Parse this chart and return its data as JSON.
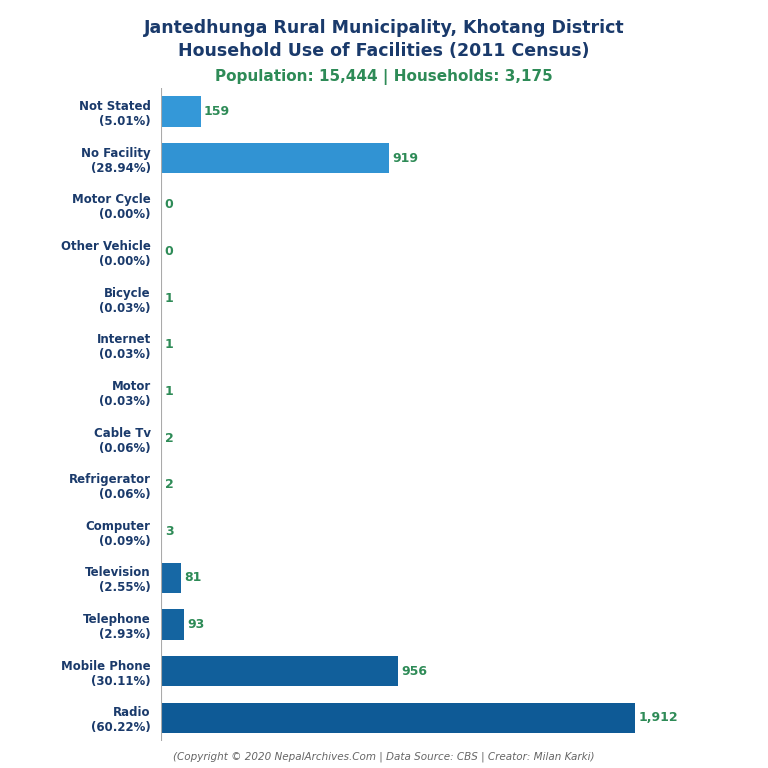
{
  "title_line1": "Jantedhunga Rural Municipality, Khotang District",
  "title_line2": "Household Use of Facilities (2011 Census)",
  "subtitle": "Population: 15,444 | Households: 3,175",
  "footer": "(Copyright © 2020 NepalArchives.Com | Data Source: CBS | Creator: Milan Karki)",
  "categories": [
    "Not Stated\n(5.01%)",
    "No Facility\n(28.94%)",
    "Motor Cycle\n(0.00%)",
    "Other Vehicle\n(0.00%)",
    "Bicycle\n(0.03%)",
    "Internet\n(0.03%)",
    "Motor\n(0.03%)",
    "Cable Tv\n(0.06%)",
    "Refrigerator\n(0.06%)",
    "Computer\n(0.09%)",
    "Television\n(2.55%)",
    "Telephone\n(2.93%)",
    "Mobile Phone\n(30.11%)",
    "Radio\n(60.22%)"
  ],
  "values": [
    159,
    919,
    0,
    0,
    1,
    1,
    1,
    2,
    2,
    3,
    81,
    93,
    956,
    1912
  ],
  "bar_colors": [
    "#3a9fd4",
    "#3a9fd4",
    "#3a9fd4",
    "#3a9fd4",
    "#3a9fd4",
    "#3a9fd4",
    "#3a9fd4",
    "#3a9fd4",
    "#3a9fd4",
    "#3a9fd4",
    "#3a9fd4",
    "#3a9fd4",
    "#1a72b0",
    "#1060a0"
  ],
  "title_color": "#1a3a6b",
  "subtitle_color": "#2e8b57",
  "value_color": "#2e8b57",
  "footer_color": "#666666",
  "background_color": "#ffffff",
  "xlim": [
    0,
    2200
  ]
}
